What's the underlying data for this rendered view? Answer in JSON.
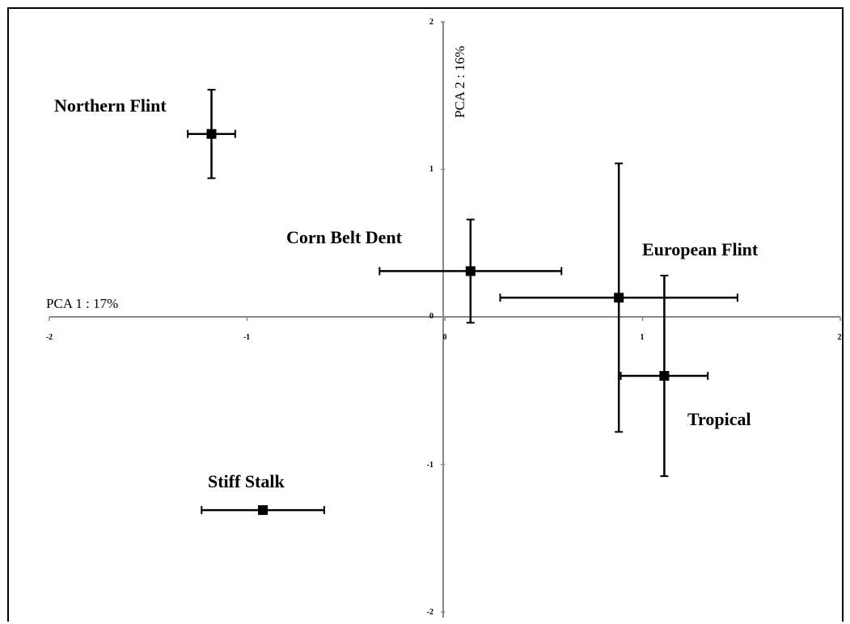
{
  "chart_data": {
    "type": "scatter",
    "title": "",
    "xlabel": "PCA 1 : 17%",
    "ylabel": "PCA 2 : 16%",
    "xlim": [
      -2,
      2
    ],
    "ylim": [
      -2,
      2
    ],
    "xticks": [
      "-2",
      "-1",
      "0",
      "1",
      "2"
    ],
    "yticks": [
      "2",
      "1",
      "0",
      "-1",
      "-2"
    ],
    "grid": false,
    "points": [
      {
        "label": "Northern Flint",
        "x": -1.18,
        "y": 1.24,
        "xerr": 0.12,
        "yerr": 0.3
      },
      {
        "label": "Corn Belt Dent",
        "x": 0.13,
        "y": 0.31,
        "xerr": 0.46,
        "yerr": 0.35
      },
      {
        "label": "European Flint",
        "x": 0.88,
        "y": 0.13,
        "xerr": 0.6,
        "yerr": 0.91
      },
      {
        "label": "Tropical",
        "x": 1.11,
        "y": -0.4,
        "xerr": 0.22,
        "yerr": 0.68
      },
      {
        "label": "Stiff Stalk",
        "x": -0.92,
        "y": -1.31,
        "xerr": 0.31,
        "yerr": 0
      }
    ]
  }
}
